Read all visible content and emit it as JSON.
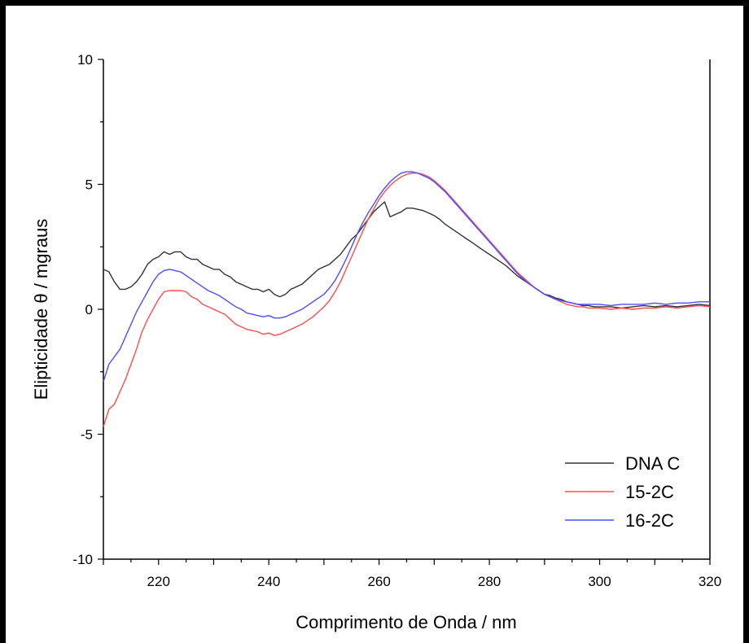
{
  "chart_data": {
    "type": "line",
    "title": "",
    "xlabel": "Comprimento de Onda / nm",
    "ylabel": "Elipticidade θ / mgraus",
    "xlim": [
      210,
      320
    ],
    "ylim": [
      -10,
      10
    ],
    "x_ticks": [
      220,
      240,
      260,
      280,
      300,
      320
    ],
    "y_ticks": [
      -10,
      -5,
      0,
      5,
      10
    ],
    "grid": false,
    "legend_position": "bottom-right",
    "series": [
      {
        "name": "DNA C",
        "color": "#333333",
        "points": [
          [
            210,
            1.6
          ],
          [
            211,
            1.5
          ],
          [
            212,
            1.1
          ],
          [
            213,
            0.8
          ],
          [
            214,
            0.8
          ],
          [
            215,
            0.9
          ],
          [
            216,
            1.1
          ],
          [
            217,
            1.4
          ],
          [
            218,
            1.8
          ],
          [
            219,
            2.0
          ],
          [
            220,
            2.1
          ],
          [
            221,
            2.3
          ],
          [
            222,
            2.2
          ],
          [
            223,
            2.3
          ],
          [
            224,
            2.3
          ],
          [
            225,
            2.1
          ],
          [
            226,
            2.0
          ],
          [
            227,
            2.0
          ],
          [
            228,
            1.8
          ],
          [
            229,
            1.7
          ],
          [
            230,
            1.6
          ],
          [
            231,
            1.6
          ],
          [
            232,
            1.4
          ],
          [
            233,
            1.3
          ],
          [
            234,
            1.1
          ],
          [
            235,
            1.0
          ],
          [
            236,
            0.9
          ],
          [
            237,
            0.8
          ],
          [
            238,
            0.8
          ],
          [
            239,
            0.7
          ],
          [
            240,
            0.8
          ],
          [
            241,
            0.6
          ],
          [
            242,
            0.5
          ],
          [
            243,
            0.6
          ],
          [
            244,
            0.8
          ],
          [
            245,
            0.9
          ],
          [
            246,
            1.0
          ],
          [
            247,
            1.2
          ],
          [
            248,
            1.4
          ],
          [
            249,
            1.6
          ],
          [
            250,
            1.7
          ],
          [
            251,
            1.8
          ],
          [
            252,
            2.0
          ],
          [
            253,
            2.2
          ],
          [
            254,
            2.5
          ],
          [
            255,
            2.8
          ],
          [
            256,
            3.0
          ],
          [
            257,
            3.3
          ],
          [
            258,
            3.6
          ],
          [
            259,
            3.9
          ],
          [
            260,
            4.1
          ],
          [
            261,
            4.3
          ],
          [
            262,
            3.7
          ],
          [
            263,
            3.8
          ],
          [
            264,
            3.9
          ],
          [
            265,
            4.05
          ],
          [
            266,
            4.05
          ],
          [
            267,
            4.0
          ],
          [
            268,
            3.95
          ],
          [
            269,
            3.85
          ],
          [
            270,
            3.75
          ],
          [
            271,
            3.6
          ],
          [
            272,
            3.4
          ],
          [
            273,
            3.25
          ],
          [
            274,
            3.1
          ],
          [
            275,
            2.95
          ],
          [
            276,
            2.8
          ],
          [
            277,
            2.65
          ],
          [
            278,
            2.5
          ],
          [
            279,
            2.35
          ],
          [
            280,
            2.2
          ],
          [
            281,
            2.05
          ],
          [
            282,
            1.9
          ],
          [
            283,
            1.75
          ],
          [
            284,
            1.55
          ],
          [
            285,
            1.35
          ],
          [
            286,
            1.2
          ],
          [
            287,
            1.05
          ],
          [
            288,
            0.9
          ],
          [
            289,
            0.75
          ],
          [
            290,
            0.6
          ],
          [
            291,
            0.55
          ],
          [
            292,
            0.45
          ],
          [
            293,
            0.4
          ],
          [
            294,
            0.3
          ],
          [
            295,
            0.25
          ],
          [
            296,
            0.2
          ],
          [
            297,
            0.15
          ],
          [
            298,
            0.15
          ],
          [
            299,
            0.1
          ],
          [
            300,
            0.1
          ],
          [
            302,
            0.1
          ],
          [
            304,
            0.05
          ],
          [
            306,
            0.1
          ],
          [
            308,
            0.15
          ],
          [
            310,
            0.1
          ],
          [
            312,
            0.15
          ],
          [
            314,
            0.1
          ],
          [
            316,
            0.15
          ],
          [
            318,
            0.2
          ],
          [
            320,
            0.15
          ]
        ]
      },
      {
        "name": "15-2C",
        "color": "#ff4d4d",
        "points": [
          [
            210,
            -4.7
          ],
          [
            211,
            -4.0
          ],
          [
            212,
            -3.8
          ],
          [
            213,
            -3.3
          ],
          [
            214,
            -2.8
          ],
          [
            215,
            -2.2
          ],
          [
            216,
            -1.6
          ],
          [
            217,
            -0.9
          ],
          [
            218,
            -0.4
          ],
          [
            219,
            0.0
          ],
          [
            220,
            0.4
          ],
          [
            221,
            0.7
          ],
          [
            222,
            0.75
          ],
          [
            223,
            0.75
          ],
          [
            224,
            0.75
          ],
          [
            225,
            0.7
          ],
          [
            226,
            0.5
          ],
          [
            227,
            0.4
          ],
          [
            228,
            0.2
          ],
          [
            229,
            0.1
          ],
          [
            230,
            0.0
          ],
          [
            231,
            -0.1
          ],
          [
            232,
            -0.2
          ],
          [
            233,
            -0.4
          ],
          [
            234,
            -0.6
          ],
          [
            235,
            -0.7
          ],
          [
            236,
            -0.8
          ],
          [
            237,
            -0.85
          ],
          [
            238,
            -0.9
          ],
          [
            239,
            -1.0
          ],
          [
            240,
            -0.95
          ],
          [
            241,
            -1.05
          ],
          [
            242,
            -1.0
          ],
          [
            243,
            -0.9
          ],
          [
            244,
            -0.8
          ],
          [
            245,
            -0.7
          ],
          [
            246,
            -0.6
          ],
          [
            247,
            -0.45
          ],
          [
            248,
            -0.3
          ],
          [
            249,
            -0.1
          ],
          [
            250,
            0.1
          ],
          [
            251,
            0.35
          ],
          [
            252,
            0.7
          ],
          [
            253,
            1.1
          ],
          [
            254,
            1.6
          ],
          [
            255,
            2.1
          ],
          [
            256,
            2.6
          ],
          [
            257,
            3.1
          ],
          [
            258,
            3.6
          ],
          [
            259,
            4.0
          ],
          [
            260,
            4.4
          ],
          [
            261,
            4.7
          ],
          [
            262,
            4.95
          ],
          [
            263,
            5.15
          ],
          [
            264,
            5.3
          ],
          [
            265,
            5.4
          ],
          [
            266,
            5.45
          ],
          [
            267,
            5.45
          ],
          [
            268,
            5.4
          ],
          [
            269,
            5.3
          ],
          [
            270,
            5.15
          ],
          [
            271,
            4.95
          ],
          [
            272,
            4.75
          ],
          [
            273,
            4.5
          ],
          [
            274,
            4.25
          ],
          [
            275,
            4.0
          ],
          [
            276,
            3.75
          ],
          [
            277,
            3.5
          ],
          [
            278,
            3.25
          ],
          [
            279,
            3.0
          ],
          [
            280,
            2.75
          ],
          [
            281,
            2.5
          ],
          [
            282,
            2.25
          ],
          [
            283,
            2.0
          ],
          [
            284,
            1.75
          ],
          [
            285,
            1.5
          ],
          [
            286,
            1.3
          ],
          [
            287,
            1.1
          ],
          [
            288,
            0.9
          ],
          [
            289,
            0.75
          ],
          [
            290,
            0.6
          ],
          [
            291,
            0.5
          ],
          [
            292,
            0.4
          ],
          [
            293,
            0.3
          ],
          [
            294,
            0.2
          ],
          [
            295,
            0.15
          ],
          [
            296,
            0.1
          ],
          [
            297,
            0.1
          ],
          [
            298,
            0.05
          ],
          [
            300,
            0.05
          ],
          [
            302,
            0.0
          ],
          [
            304,
            0.05
          ],
          [
            306,
            0.0
          ],
          [
            308,
            0.05
          ],
          [
            310,
            0.05
          ],
          [
            312,
            0.1
          ],
          [
            314,
            0.05
          ],
          [
            316,
            0.1
          ],
          [
            318,
            0.15
          ],
          [
            320,
            0.1
          ]
        ]
      },
      {
        "name": "16-2C",
        "color": "#4d4dff",
        "points": [
          [
            210,
            -2.9
          ],
          [
            211,
            -2.2
          ],
          [
            212,
            -1.9
          ],
          [
            213,
            -1.6
          ],
          [
            214,
            -1.1
          ],
          [
            215,
            -0.6
          ],
          [
            216,
            -0.1
          ],
          [
            217,
            0.3
          ],
          [
            218,
            0.7
          ],
          [
            219,
            1.1
          ],
          [
            220,
            1.4
          ],
          [
            221,
            1.55
          ],
          [
            222,
            1.6
          ],
          [
            223,
            1.55
          ],
          [
            224,
            1.5
          ],
          [
            225,
            1.35
          ],
          [
            226,
            1.2
          ],
          [
            227,
            1.05
          ],
          [
            228,
            0.9
          ],
          [
            229,
            0.75
          ],
          [
            230,
            0.65
          ],
          [
            231,
            0.55
          ],
          [
            232,
            0.4
          ],
          [
            233,
            0.25
          ],
          [
            234,
            0.1
          ],
          [
            235,
            0.0
          ],
          [
            236,
            -0.15
          ],
          [
            237,
            -0.2
          ],
          [
            238,
            -0.25
          ],
          [
            239,
            -0.3
          ],
          [
            240,
            -0.25
          ],
          [
            241,
            -0.35
          ],
          [
            242,
            -0.35
          ],
          [
            243,
            -0.3
          ],
          [
            244,
            -0.2
          ],
          [
            245,
            -0.1
          ],
          [
            246,
            0.0
          ],
          [
            247,
            0.15
          ],
          [
            248,
            0.3
          ],
          [
            249,
            0.45
          ],
          [
            250,
            0.6
          ],
          [
            251,
            0.85
          ],
          [
            252,
            1.15
          ],
          [
            253,
            1.55
          ],
          [
            254,
            2.0
          ],
          [
            255,
            2.5
          ],
          [
            256,
            3.0
          ],
          [
            257,
            3.45
          ],
          [
            258,
            3.85
          ],
          [
            259,
            4.2
          ],
          [
            260,
            4.55
          ],
          [
            261,
            4.85
          ],
          [
            262,
            5.1
          ],
          [
            263,
            5.3
          ],
          [
            264,
            5.45
          ],
          [
            265,
            5.5
          ],
          [
            266,
            5.5
          ],
          [
            267,
            5.45
          ],
          [
            268,
            5.35
          ],
          [
            269,
            5.25
          ],
          [
            270,
            5.1
          ],
          [
            271,
            4.9
          ],
          [
            272,
            4.7
          ],
          [
            273,
            4.45
          ],
          [
            274,
            4.2
          ],
          [
            275,
            3.95
          ],
          [
            276,
            3.7
          ],
          [
            277,
            3.45
          ],
          [
            278,
            3.2
          ],
          [
            279,
            2.95
          ],
          [
            280,
            2.7
          ],
          [
            281,
            2.45
          ],
          [
            282,
            2.2
          ],
          [
            283,
            1.95
          ],
          [
            284,
            1.7
          ],
          [
            285,
            1.45
          ],
          [
            286,
            1.25
          ],
          [
            287,
            1.05
          ],
          [
            288,
            0.9
          ],
          [
            289,
            0.75
          ],
          [
            290,
            0.6
          ],
          [
            291,
            0.5
          ],
          [
            292,
            0.4
          ],
          [
            293,
            0.35
          ],
          [
            294,
            0.3
          ],
          [
            295,
            0.25
          ],
          [
            296,
            0.2
          ],
          [
            297,
            0.2
          ],
          [
            298,
            0.2
          ],
          [
            300,
            0.2
          ],
          [
            302,
            0.15
          ],
          [
            304,
            0.2
          ],
          [
            306,
            0.2
          ],
          [
            308,
            0.2
          ],
          [
            310,
            0.25
          ],
          [
            312,
            0.2
          ],
          [
            314,
            0.25
          ],
          [
            316,
            0.25
          ],
          [
            318,
            0.3
          ],
          [
            320,
            0.3
          ]
        ]
      }
    ]
  }
}
